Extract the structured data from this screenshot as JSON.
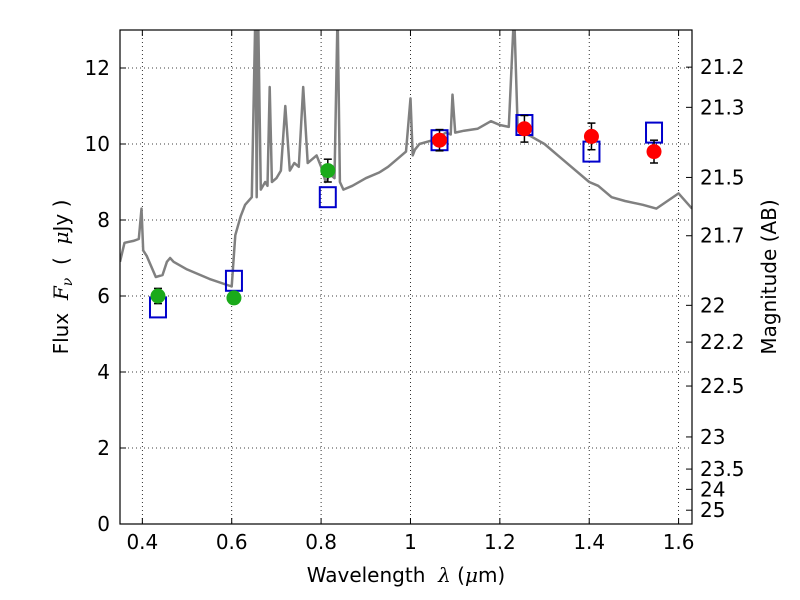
{
  "chart_data": {
    "type": "scatter",
    "xlabel": {
      "prefix": "Wavelength  ",
      "symbol": "λ",
      "suffix": " (",
      "unit_symbol": "μ",
      "unit": "m)"
    },
    "ylabel": {
      "prefix": "Flux  ",
      "symbol": "F",
      "subscript": "ν",
      "paren_open": "  (  ",
      "unit_symbol": "μ",
      "unit": "Jy )"
    },
    "y2label": "Magnitude (AB)",
    "xlim": [
      0.35,
      1.63
    ],
    "ylim": [
      0,
      13
    ],
    "grid": true,
    "x_ticks": [
      {
        "value": 0.4,
        "label": "0.4"
      },
      {
        "value": 0.6,
        "label": "0.6"
      },
      {
        "value": 0.8,
        "label": "0.8"
      },
      {
        "value": 1.0,
        "label": "1"
      },
      {
        "value": 1.2,
        "label": "1.2"
      },
      {
        "value": 1.4,
        "label": "1.4"
      },
      {
        "value": 1.6,
        "label": "1.6"
      }
    ],
    "y_ticks": [
      {
        "value": 0,
        "label": "0"
      },
      {
        "value": 2,
        "label": "2"
      },
      {
        "value": 4,
        "label": "4"
      },
      {
        "value": 6,
        "label": "6"
      },
      {
        "value": 8,
        "label": "8"
      },
      {
        "value": 10,
        "label": "10"
      },
      {
        "value": 12,
        "label": "12"
      }
    ],
    "mag_ticks": [
      {
        "value": 21.2,
        "label": "21.2"
      },
      {
        "value": 21.3,
        "label": "21.3"
      },
      {
        "value": 21.5,
        "label": "21.5"
      },
      {
        "value": 21.7,
        "label": "21.7"
      },
      {
        "value": 22.0,
        "label": "22"
      },
      {
        "value": 22.2,
        "label": "22.2"
      },
      {
        "value": 22.5,
        "label": "22.5"
      },
      {
        "value": 23.0,
        "label": "23"
      },
      {
        "value": 23.5,
        "label": "23.5"
      },
      {
        "value": 24.0,
        "label": "24"
      },
      {
        "value": 25.0,
        "label": "25"
      }
    ],
    "template_spectrum": {
      "color": "#808080",
      "x": [
        0.35,
        0.36,
        0.38,
        0.392,
        0.398,
        0.402,
        0.41,
        0.43,
        0.445,
        0.455,
        0.462,
        0.47,
        0.5,
        0.55,
        0.6,
        0.608,
        0.62,
        0.63,
        0.645,
        0.653,
        0.656,
        0.659,
        0.665,
        0.675,
        0.68,
        0.685,
        0.69,
        0.7,
        0.71,
        0.72,
        0.73,
        0.74,
        0.75,
        0.76,
        0.77,
        0.78,
        0.79,
        0.8,
        0.81,
        0.82,
        0.83,
        0.837,
        0.842,
        0.85,
        0.87,
        0.9,
        0.93,
        0.95,
        0.97,
        0.99,
        1.0,
        1.005,
        1.01,
        1.02,
        1.05,
        1.08,
        1.09,
        1.094,
        1.1,
        1.12,
        1.15,
        1.18,
        1.2,
        1.22,
        1.232,
        1.24,
        1.25,
        1.27,
        1.3,
        1.33,
        1.36,
        1.4,
        1.42,
        1.45,
        1.48,
        1.52,
        1.55,
        1.6,
        1.63
      ],
      "y": [
        6.9,
        7.4,
        7.45,
        7.5,
        8.3,
        7.2,
        7.05,
        6.5,
        6.55,
        6.9,
        7.0,
        6.9,
        6.7,
        6.45,
        6.25,
        7.6,
        8.1,
        8.4,
        8.6,
        13.5,
        8.6,
        13.5,
        8.8,
        9.0,
        8.9,
        11.5,
        9.0,
        9.1,
        9.3,
        11.0,
        9.3,
        9.5,
        9.4,
        11.5,
        9.5,
        9.6,
        9.7,
        9.4,
        9.0,
        9.2,
        9.1,
        13.5,
        9.0,
        8.8,
        8.9,
        9.1,
        9.25,
        9.4,
        9.6,
        9.8,
        11.2,
        9.7,
        9.85,
        10.0,
        10.1,
        10.3,
        10.25,
        11.3,
        10.3,
        10.35,
        10.4,
        10.6,
        10.5,
        10.45,
        13.5,
        10.4,
        10.3,
        10.2,
        10.0,
        9.7,
        9.4,
        9.0,
        8.9,
        8.6,
        8.5,
        8.4,
        8.3,
        8.7,
        8.3
      ]
    },
    "series": [
      {
        "marker": "circle",
        "color": "#1aaa1a",
        "x": [
          0.435,
          0.605,
          0.815
        ],
        "y": [
          6.0,
          5.95,
          9.3
        ],
        "yerr": [
          0.2,
          0.12,
          0.3
        ]
      },
      {
        "marker": "circle",
        "color": "#ff0000",
        "x": [
          1.065,
          1.255,
          1.405,
          1.545
        ],
        "y": [
          10.1,
          10.4,
          10.2,
          9.8
        ],
        "yerr": [
          0.28,
          0.35,
          0.35,
          0.3
        ]
      },
      {
        "marker": "open-square",
        "color": "#0000cc",
        "x": [
          0.435,
          0.605,
          0.815,
          1.065,
          1.255,
          1.405,
          1.545
        ],
        "y": [
          5.7,
          6.4,
          8.6,
          10.1,
          10.5,
          9.8,
          10.3
        ]
      }
    ]
  }
}
